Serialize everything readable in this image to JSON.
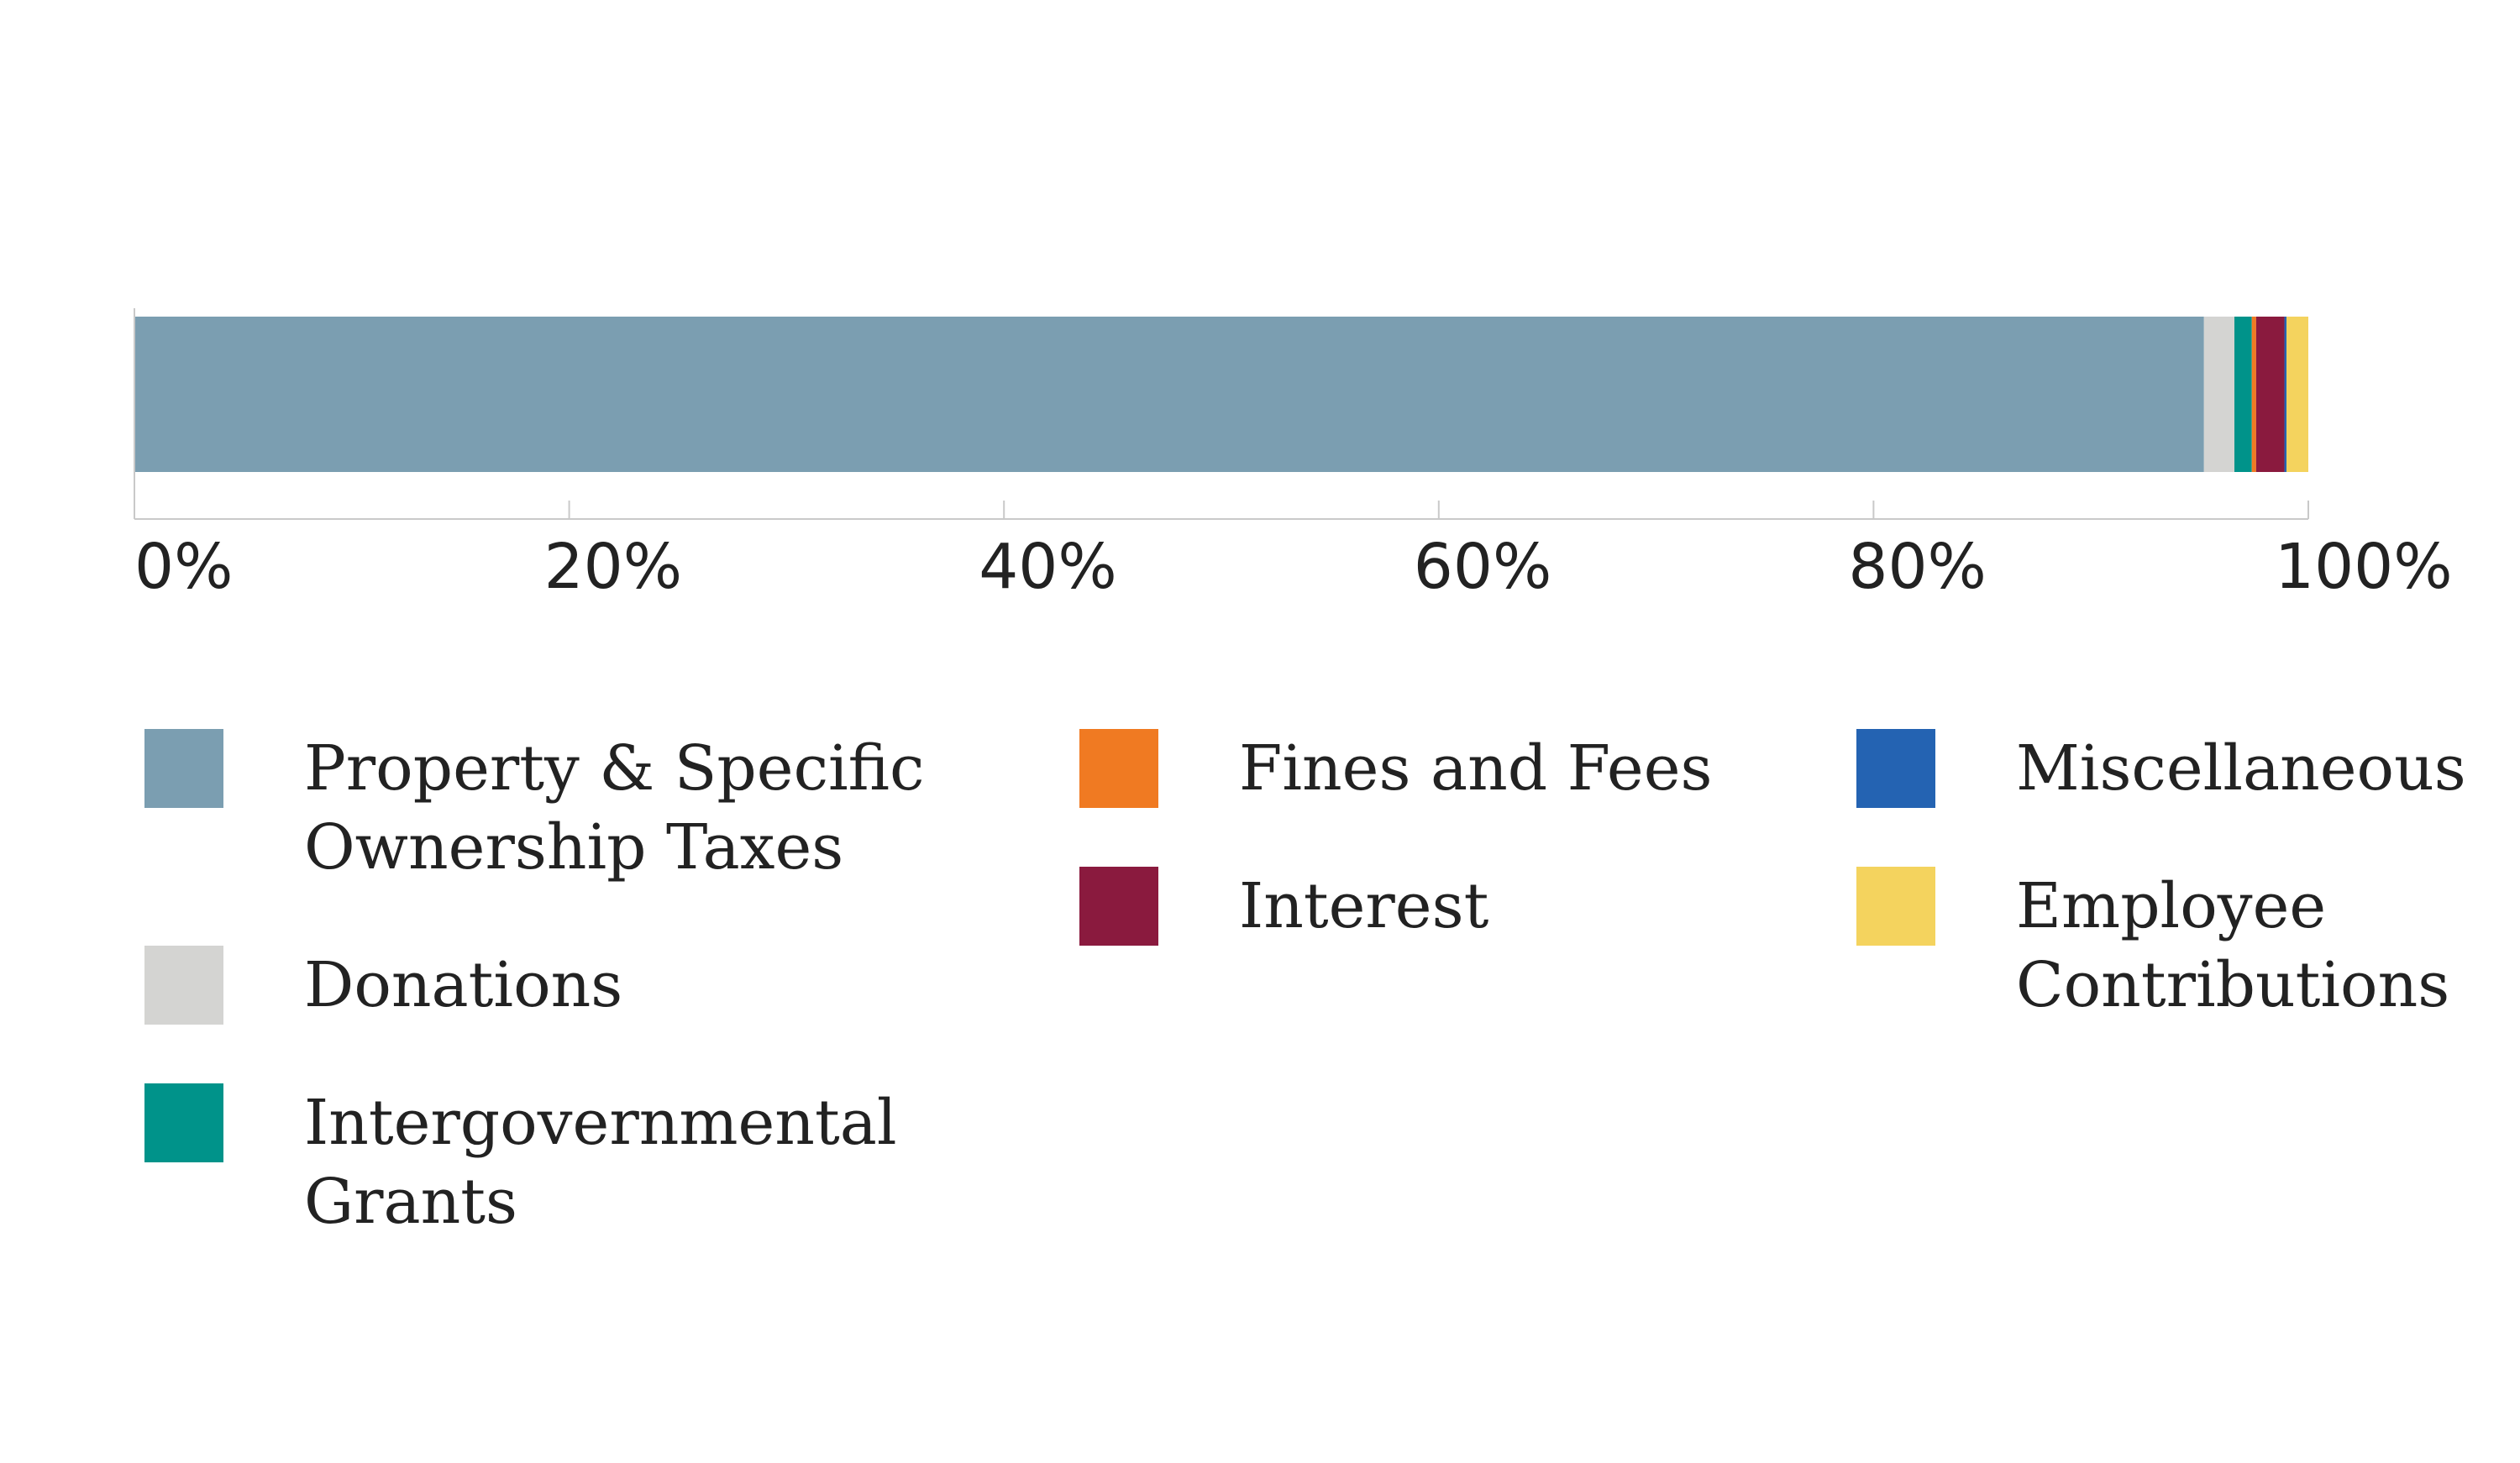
{
  "chart_data": {
    "type": "bar",
    "orientation": "horizontal",
    "stacked": true,
    "normalized": true,
    "title": "",
    "xlabel": "",
    "ylabel": "",
    "xlim": [
      0,
      100
    ],
    "x_ticks": [
      0,
      20,
      40,
      60,
      80,
      100
    ],
    "x_tick_labels": [
      "0%",
      "20%",
      "40%",
      "60%",
      "80%",
      "100%"
    ],
    "grid": false,
    "legend_position": "bottom",
    "series": [
      {
        "name": "Property & Specific Ownership Taxes",
        "label_lines": [
          "Property & Specific",
          "Ownership Taxes"
        ],
        "value": 95.2,
        "color": "#7b9eb1"
      },
      {
        "name": "Donations",
        "label_lines": [
          "Donations"
        ],
        "value": 1.4,
        "color": "#d4d4d2"
      },
      {
        "name": "Intergovernmental Grants",
        "label_lines": [
          "Intergovernmental",
          "Grants"
        ],
        "value": 0.8,
        "color": "#00938a"
      },
      {
        "name": "Fines and Fees",
        "label_lines": [
          "Fines and Fees"
        ],
        "value": 0.2,
        "color": "#f07a22"
      },
      {
        "name": "Interest",
        "label_lines": [
          "Interest"
        ],
        "value": 1.3,
        "color": "#8a1a3e"
      },
      {
        "name": "Miscellaneous",
        "label_lines": [
          "Miscellaneous"
        ],
        "value": 0.1,
        "color": "#2463b2"
      },
      {
        "name": "Employee Contributions",
        "label_lines": [
          "Employee",
          "Contributions"
        ],
        "value": 1.0,
        "color": "#f4d35e"
      }
    ]
  }
}
